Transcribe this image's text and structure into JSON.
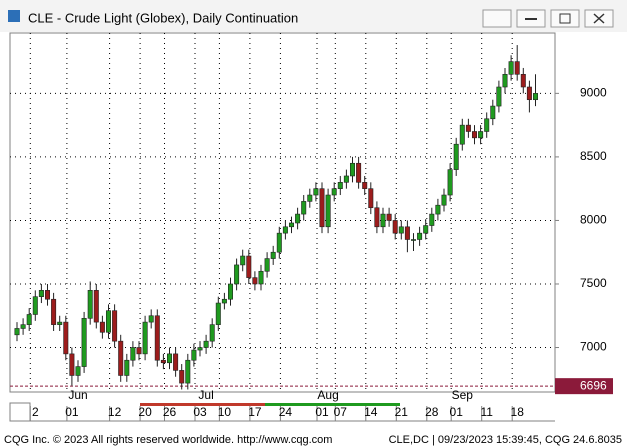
{
  "chart_data": {
    "type": "candlestick",
    "title": "CLE - Crude Light (Globex), Daily Continuation",
    "categories": [
      null,
      null,
      null,
      "2",
      null,
      null,
      null,
      null,
      null,
      "01",
      null,
      null,
      null,
      null,
      null,
      null,
      "12",
      null,
      null,
      null,
      null,
      "20",
      null,
      null,
      null,
      "26",
      null,
      null,
      null,
      null,
      "03",
      null,
      null,
      null,
      "10",
      null,
      null,
      null,
      null,
      "17",
      null,
      null,
      null,
      null,
      "24",
      null,
      null,
      null,
      null,
      null,
      "01",
      null,
      null,
      "07",
      null,
      null,
      null,
      null,
      "14",
      null,
      null,
      null,
      null,
      "21",
      null,
      null,
      null,
      null,
      "28",
      null,
      null,
      null,
      "01",
      null,
      null,
      null,
      null,
      "11",
      null,
      null,
      null,
      null,
      "18",
      null,
      null,
      null
    ],
    "month_labels": [
      "Jun",
      "Jul",
      "Aug",
      "Sep"
    ],
    "open": [
      7100,
      7150,
      7180,
      7260,
      7400,
      7450,
      7380,
      7180,
      7200,
      6950,
      6780,
      6850,
      7230,
      7450,
      7200,
      7120,
      7290,
      7050,
      6780,
      6900,
      7000,
      6950,
      7200,
      7250,
      6900,
      6880,
      6950,
      6820,
      6720,
      6900,
      6980,
      7000,
      7050,
      7180,
      7350,
      7380,
      7500,
      7650,
      7720,
      7550,
      7500,
      7600,
      7700,
      7750,
      7900,
      7950,
      7980,
      8050,
      8150,
      8200,
      8250,
      7950,
      8200,
      8250,
      8300,
      8350,
      8450,
      8300,
      8250,
      8100,
      7950,
      8050,
      8000,
      7900,
      7950,
      7850,
      7850,
      7900,
      7960,
      8050,
      8120,
      8200,
      8400,
      8600,
      8750,
      8700,
      8650,
      8700,
      8800,
      8900,
      9050,
      9150,
      9250,
      9150,
      9050,
      8950
    ],
    "high": [
      7200,
      7230,
      7310,
      7450,
      7500,
      7500,
      7430,
      7250,
      7250,
      7000,
      6900,
      7280,
      7520,
      7500,
      7250,
      7340,
      7340,
      7100,
      6950,
      7050,
      7050,
      7250,
      7300,
      7300,
      6950,
      7000,
      7000,
      6870,
      6950,
      7030,
      7050,
      7100,
      7230,
      7400,
      7430,
      7550,
      7700,
      7770,
      7770,
      7600,
      7650,
      7750,
      7800,
      7950,
      8000,
      8030,
      8100,
      8200,
      8250,
      8300,
      8300,
      8250,
      8300,
      8350,
      8400,
      8500,
      8500,
      8350,
      8300,
      8150,
      8100,
      8100,
      8050,
      8000,
      8000,
      7900,
      7950,
      8010,
      8100,
      8170,
      8250,
      8450,
      8650,
      8800,
      8800,
      8750,
      8750,
      8850,
      8950,
      9100,
      9200,
      9300,
      9380,
      9200,
      9100,
      9150
    ],
    "low": [
      7050,
      7100,
      7130,
      7210,
      7350,
      7330,
      7130,
      7130,
      6900,
      6700,
      6730,
      6800,
      7180,
      7150,
      7070,
      7070,
      7000,
      6730,
      6730,
      6850,
      6900,
      6900,
      7150,
      6850,
      6830,
      6830,
      6770,
      6670,
      6670,
      6850,
      6930,
      6950,
      7000,
      7130,
      7300,
      7330,
      7450,
      7600,
      7500,
      7450,
      7450,
      7550,
      7650,
      7700,
      7850,
      7900,
      7930,
      8000,
      8100,
      8150,
      7900,
      7900,
      8150,
      8200,
      8250,
      8300,
      8250,
      8200,
      8050,
      7900,
      7900,
      7950,
      7850,
      7850,
      7750,
      7760,
      7800,
      7850,
      7910,
      8000,
      8070,
      8150,
      8350,
      8550,
      8650,
      8600,
      8600,
      8650,
      8750,
      8850,
      9000,
      9100,
      9100,
      9000,
      8850,
      8900
    ],
    "close": [
      7150,
      7180,
      7260,
      7400,
      7450,
      7380,
      7180,
      7200,
      6950,
      6780,
      6850,
      7230,
      7450,
      7200,
      7120,
      7290,
      7050,
      6780,
      6900,
      7000,
      6950,
      7200,
      7250,
      6900,
      6880,
      6950,
      6820,
      6720,
      6900,
      6980,
      7000,
      7050,
      7180,
      7350,
      7380,
      7500,
      7650,
      7720,
      7550,
      7500,
      7600,
      7700,
      7750,
      7900,
      7950,
      7980,
      8050,
      8150,
      8200,
      8250,
      7950,
      8200,
      8250,
      8300,
      8350,
      8450,
      8300,
      8250,
      8100,
      7950,
      8050,
      8000,
      7900,
      7950,
      7850,
      7850,
      7900,
      7960,
      8050,
      8120,
      8200,
      8400,
      8600,
      8750,
      8700,
      8650,
      8700,
      8800,
      8900,
      9050,
      9150,
      9250,
      9150,
      9050,
      8950,
      9000
    ],
    "up_color": "#1f9a1f",
    "down_color": "#9c1c1c",
    "ylim": [
      6650,
      9475
    ],
    "yticks": [
      7000,
      7500,
      8000,
      8500,
      9000
    ],
    "grid": true,
    "price_line": 6696,
    "price_line_color": "#8b1a3a"
  },
  "footer": {
    "left": "CQG Inc. © 2023 All rights reserved worldwide. http://www.cqg.com",
    "right": "CLE,DC | 09/23/2023 15:39:45, CQG 24.6.8035"
  }
}
